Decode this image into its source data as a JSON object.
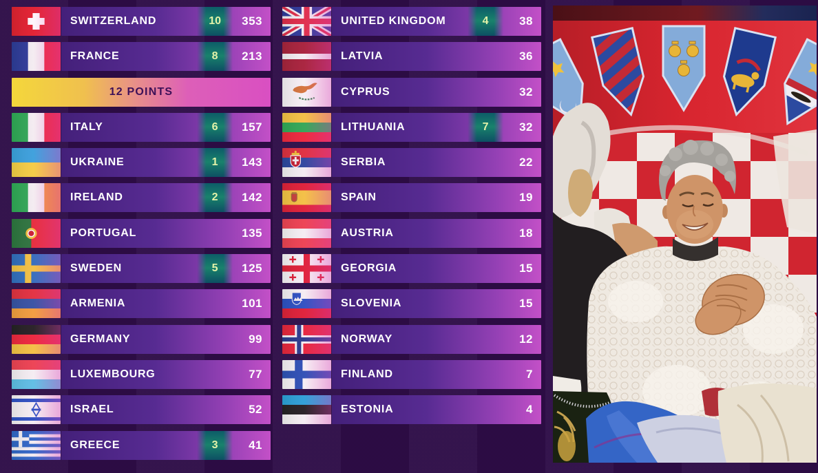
{
  "scoreboard": {
    "columns": {
      "left": [
        {
          "display": "SWITZERLAND",
          "flag": "ch",
          "received": "10",
          "score": "353"
        },
        {
          "display": "FRANCE",
          "flag": "fr",
          "received": "8",
          "score": "213"
        },
        {
          "type": "banner",
          "label": "12 POINTS"
        },
        {
          "display": "ITALY",
          "flag": "it",
          "received": "6",
          "score": "157"
        },
        {
          "display": "UKRAINE",
          "flag": "ua",
          "received": "1",
          "score": "143"
        },
        {
          "display": "IRELAND",
          "flag": "ie",
          "received": "2",
          "score": "142"
        },
        {
          "display": "PORTUGAL",
          "flag": "pt",
          "received": "",
          "score": "135"
        },
        {
          "display": "SWEDEN",
          "flag": "se",
          "received": "5",
          "score": "125"
        },
        {
          "display": "ARMENIA",
          "flag": "am",
          "received": "",
          "score": "101"
        },
        {
          "display": "GERMANY",
          "flag": "de",
          "received": "",
          "score": "99"
        },
        {
          "display": "LUXEMBOURG",
          "flag": "lu",
          "received": "",
          "score": "77"
        },
        {
          "display": "ISRAEL",
          "flag": "il",
          "received": "",
          "score": "52"
        },
        {
          "display": "GREECE",
          "flag": "gr",
          "received": "3",
          "score": "41"
        }
      ],
      "right": [
        {
          "display": "UNITED KINGDOM",
          "flag": "gb",
          "received": "4",
          "score": "38"
        },
        {
          "display": "LATVIA",
          "flag": "lv",
          "received": "",
          "score": "36"
        },
        {
          "display": "CYPRUS",
          "flag": "cy",
          "received": "",
          "score": "32"
        },
        {
          "display": "LITHUANIA",
          "flag": "lt",
          "received": "7",
          "score": "32"
        },
        {
          "display": "SERBIA",
          "flag": "rs",
          "received": "",
          "score": "22"
        },
        {
          "display": "SPAIN",
          "flag": "es",
          "received": "",
          "score": "19"
        },
        {
          "display": "AUSTRIA",
          "flag": "at",
          "received": "",
          "score": "18"
        },
        {
          "display": "GEORGIA",
          "flag": "ge",
          "received": "",
          "score": "15"
        },
        {
          "display": "SLOVENIA",
          "flag": "si",
          "received": "",
          "score": "15"
        },
        {
          "display": "NORWAY",
          "flag": "no",
          "received": "",
          "score": "12"
        },
        {
          "display": "FINLAND",
          "flag": "fi",
          "received": "",
          "score": "7"
        },
        {
          "display": "ESTONIA",
          "flag": "ee",
          "received": "",
          "score": "4"
        }
      ]
    }
  },
  "colors": {
    "background": "#2e0d47",
    "row_gradient_start": "#44207a",
    "row_gradient_end": "#c350c7",
    "points_badge": "#17806c",
    "points_badge_text": "#e3f2a9",
    "banner_yellow": "#f4d73b",
    "banner_magenta": "#d94fc2",
    "banner_text": "#3d1058",
    "score_text": "#ffffff"
  }
}
